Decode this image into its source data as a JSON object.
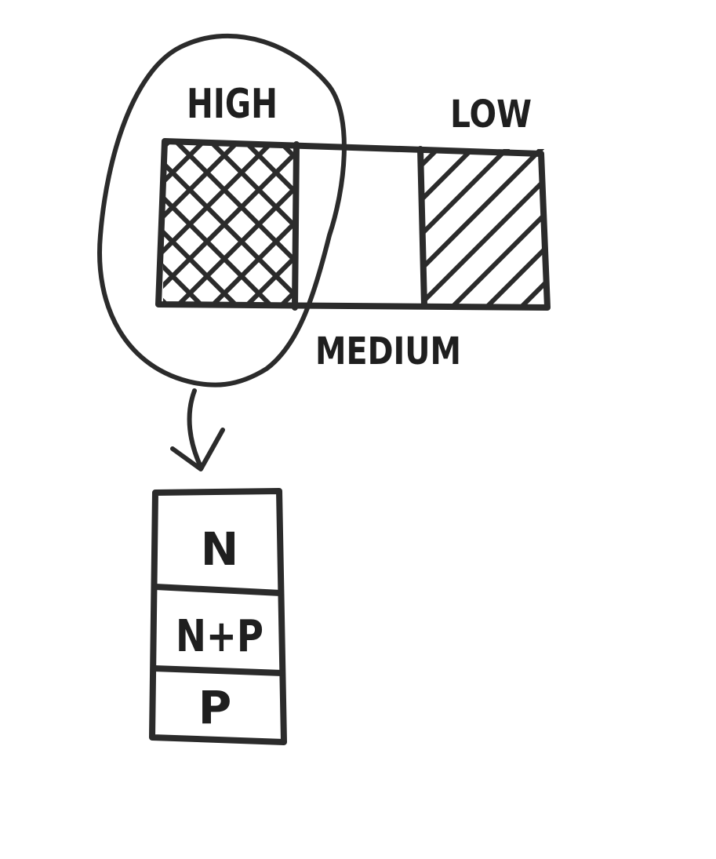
{
  "top_bar": {
    "label_high": "HIGH",
    "label_low": "LOW",
    "label_medium": "MEDIUM"
  },
  "breakdown": {
    "rows": [
      "N",
      "N+P",
      "P"
    ]
  },
  "colors": {
    "ink": "#2b2b2b",
    "paper": "#ffffff"
  }
}
